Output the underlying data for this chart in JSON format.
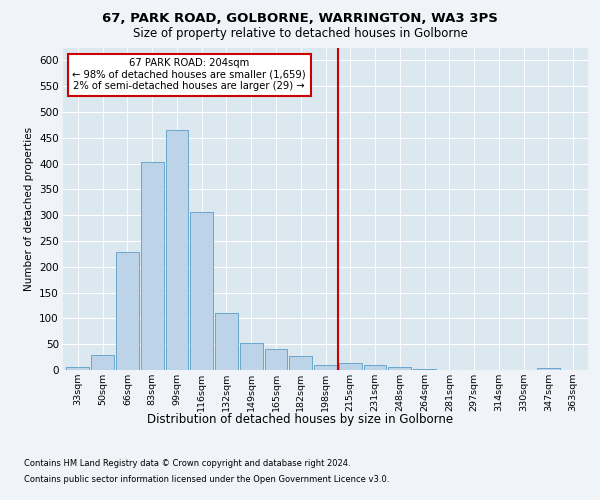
{
  "title1": "67, PARK ROAD, GOLBORNE, WARRINGTON, WA3 3PS",
  "title2": "Size of property relative to detached houses in Golborne",
  "xlabel": "Distribution of detached houses by size in Golborne",
  "ylabel": "Number of detached properties",
  "categories": [
    "33sqm",
    "50sqm",
    "66sqm",
    "83sqm",
    "99sqm",
    "116sqm",
    "132sqm",
    "149sqm",
    "165sqm",
    "182sqm",
    "198sqm",
    "215sqm",
    "231sqm",
    "248sqm",
    "264sqm",
    "281sqm",
    "297sqm",
    "314sqm",
    "330sqm",
    "347sqm",
    "363sqm"
  ],
  "values": [
    5,
    30,
    228,
    403,
    465,
    307,
    110,
    53,
    40,
    27,
    10,
    13,
    10,
    5,
    2,
    0,
    0,
    0,
    0,
    3,
    0
  ],
  "bar_color": "#bdd4e8",
  "bar_edge_color": "#5a9ec8",
  "vline_x_index": 10.5,
  "vline_color": "#cc0000",
  "annotation_text": "67 PARK ROAD: 204sqm\n← 98% of detached houses are smaller (1,659)\n2% of semi-detached houses are larger (29) →",
  "annotation_box_color": "#ffffff",
  "annotation_box_edge_color": "#cc0000",
  "ylim": [
    0,
    625
  ],
  "yticks": [
    0,
    50,
    100,
    150,
    200,
    250,
    300,
    350,
    400,
    450,
    500,
    550,
    600
  ],
  "bg_color": "#dce8f0",
  "fig_color": "#f0f4f8",
  "footnote1": "Contains HM Land Registry data © Crown copyright and database right 2024.",
  "footnote2": "Contains public sector information licensed under the Open Government Licence v3.0."
}
